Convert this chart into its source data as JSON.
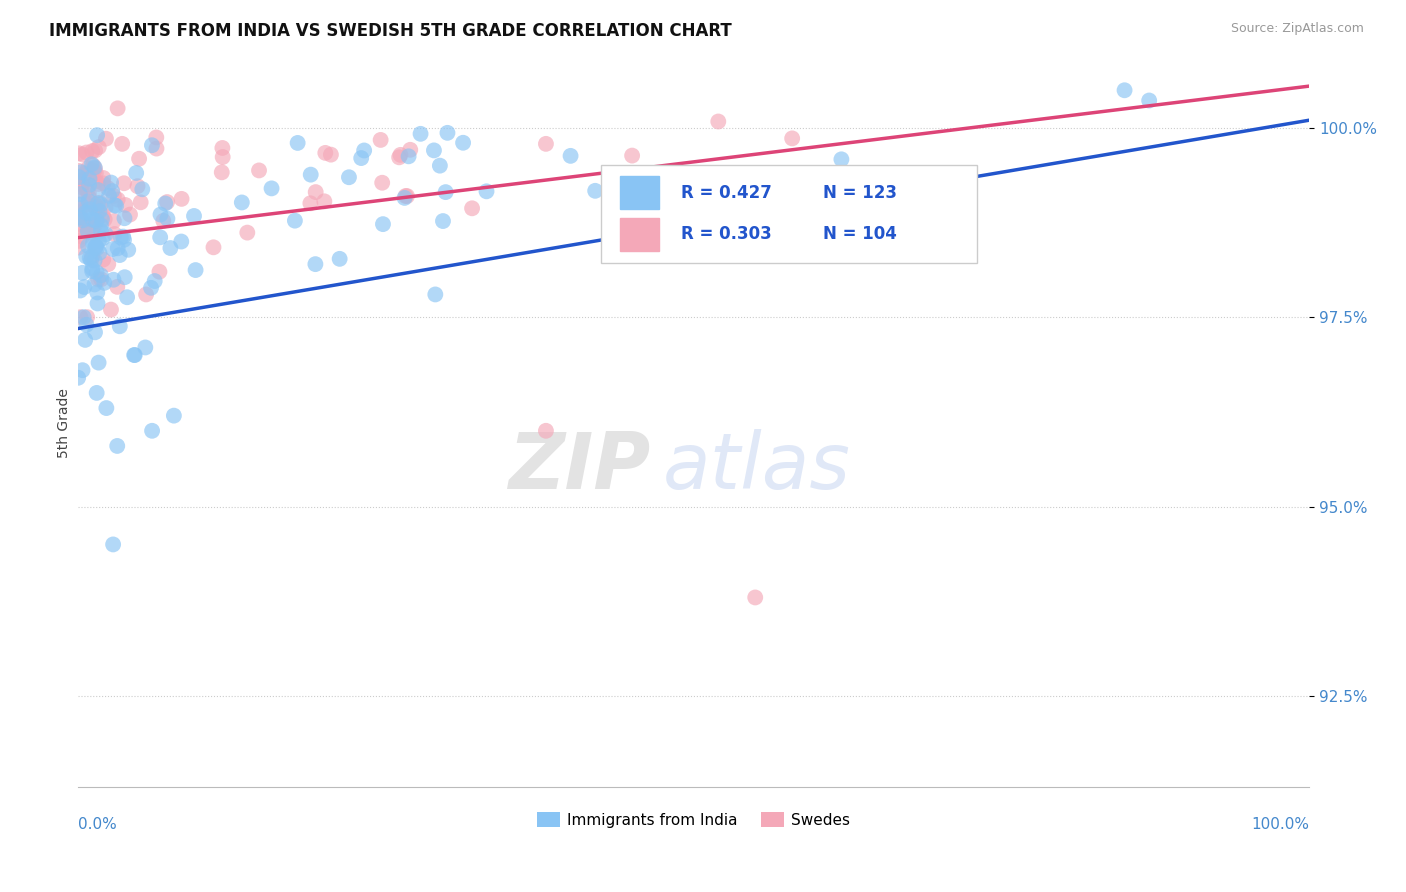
{
  "title": "IMMIGRANTS FROM INDIA VS SWEDISH 5TH GRADE CORRELATION CHART",
  "source": "Source: ZipAtlas.com",
  "ylabel": "5th Grade",
  "yticks": [
    92.5,
    95.0,
    97.5,
    100.0
  ],
  "ytick_labels": [
    "92.5%",
    "95.0%",
    "97.5%",
    "100.0%"
  ],
  "xmin": 0.0,
  "xmax": 1.0,
  "ymin": 91.3,
  "ymax": 100.9,
  "blue_color": "#89C4F4",
  "pink_color": "#F4A8B8",
  "blue_line_color": "#2255CC",
  "pink_line_color": "#DD4477",
  "legend_r_blue": "R = 0.427",
  "legend_n_blue": "N = 123",
  "legend_r_pink": "R = 0.303",
  "legend_n_pink": "N = 104",
  "watermark_zip": "ZIP",
  "watermark_atlas": "atlas",
  "legend_blue_label": "Immigrants from India",
  "legend_pink_label": "Swedes",
  "blue_line_x0": 0.0,
  "blue_line_y0": 97.35,
  "blue_line_x1": 1.0,
  "blue_line_y1": 100.1,
  "pink_line_x0": 0.0,
  "pink_line_y0": 98.55,
  "pink_line_x1": 1.0,
  "pink_line_y1": 100.55
}
